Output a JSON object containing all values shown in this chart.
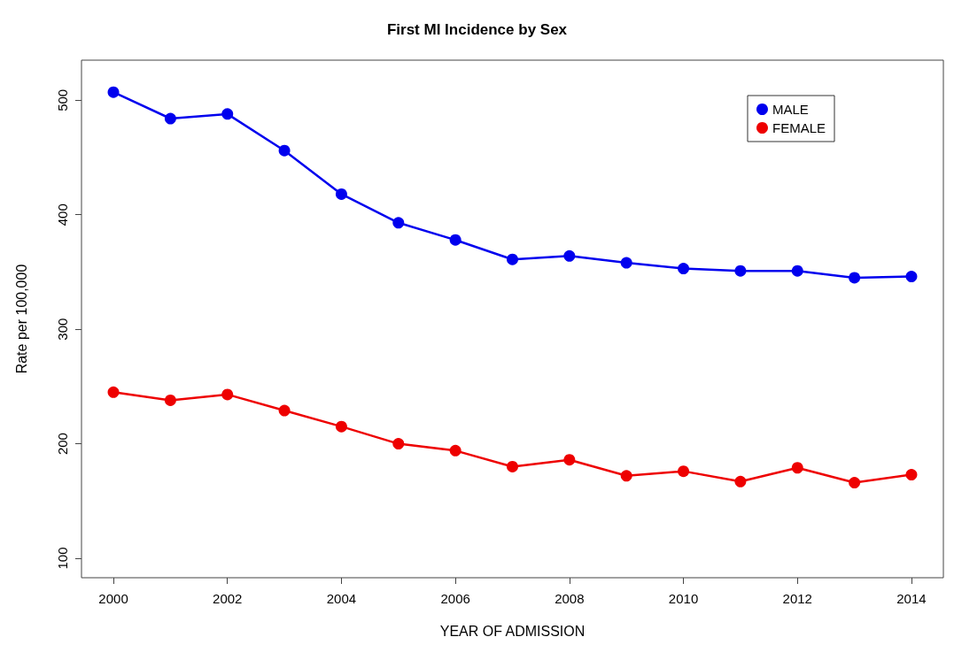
{
  "chart_data": {
    "type": "line",
    "title": "First MI Incidence by Sex",
    "xlabel": "YEAR OF ADMISSION",
    "ylabel": "Rate per 100,000",
    "x": [
      2000,
      2001,
      2002,
      2003,
      2004,
      2005,
      2006,
      2007,
      2008,
      2009,
      2010,
      2011,
      2012,
      2013,
      2014
    ],
    "series": [
      {
        "name": "MALE",
        "color": "#0000ee",
        "values": [
          507,
          484,
          488,
          456,
          418,
          393,
          378,
          361,
          364,
          358,
          353,
          351,
          351,
          345,
          346
        ]
      },
      {
        "name": "FEMALE",
        "color": "#ee0000",
        "values": [
          245,
          238,
          243,
          229,
          215,
          200,
          194,
          180,
          186,
          172,
          176,
          167,
          179,
          166,
          173
        ]
      }
    ],
    "xlim": [
      1999.44,
      2014.56
    ],
    "xticks": [
      2000,
      2002,
      2004,
      2006,
      2008,
      2010,
      2012,
      2014
    ],
    "ylim": [
      83,
      535
    ],
    "yticks": [
      100,
      200,
      300,
      400,
      500
    ],
    "grid": false,
    "legend": "top right",
    "marker": "circle",
    "line_style": "solid"
  }
}
